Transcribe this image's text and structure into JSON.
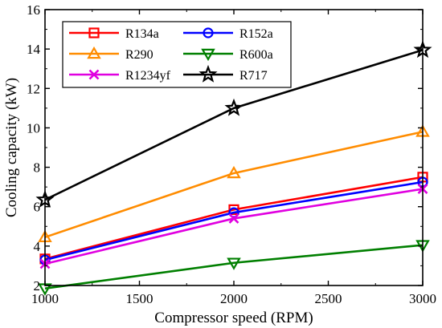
{
  "chart_data": {
    "type": "line",
    "title": "",
    "xlabel": "Compressor speed (RPM)",
    "ylabel": "Cooling capacity (kW)",
    "xlim": [
      1000,
      3000
    ],
    "ylim": [
      2,
      16
    ],
    "xticks": [
      1000,
      1500,
      2000,
      2500,
      3000
    ],
    "yticks": [
      2,
      4,
      6,
      8,
      10,
      12,
      14,
      16
    ],
    "grid": false,
    "legend_position": "top-left",
    "x": [
      1000,
      2000,
      3000
    ],
    "series": [
      {
        "name": "R134a",
        "color": "#ff0000",
        "marker": "square",
        "values": [
          3.35,
          5.85,
          7.5
        ]
      },
      {
        "name": "R152a",
        "color": "#0000ff",
        "marker": "circle",
        "values": [
          3.3,
          5.7,
          7.25
        ]
      },
      {
        "name": "R290",
        "color": "#ff8c00",
        "marker": "triangle-up",
        "values": [
          4.45,
          7.7,
          9.8
        ]
      },
      {
        "name": "R600a",
        "color": "#007f00",
        "marker": "triangle-down",
        "values": [
          1.85,
          3.15,
          4.05
        ]
      },
      {
        "name": "R1234yf",
        "color": "#e000e0",
        "marker": "x",
        "values": [
          3.1,
          5.4,
          6.9
        ]
      },
      {
        "name": "R717",
        "color": "#000000",
        "marker": "star",
        "values": [
          6.35,
          11.0,
          13.95
        ]
      }
    ]
  }
}
